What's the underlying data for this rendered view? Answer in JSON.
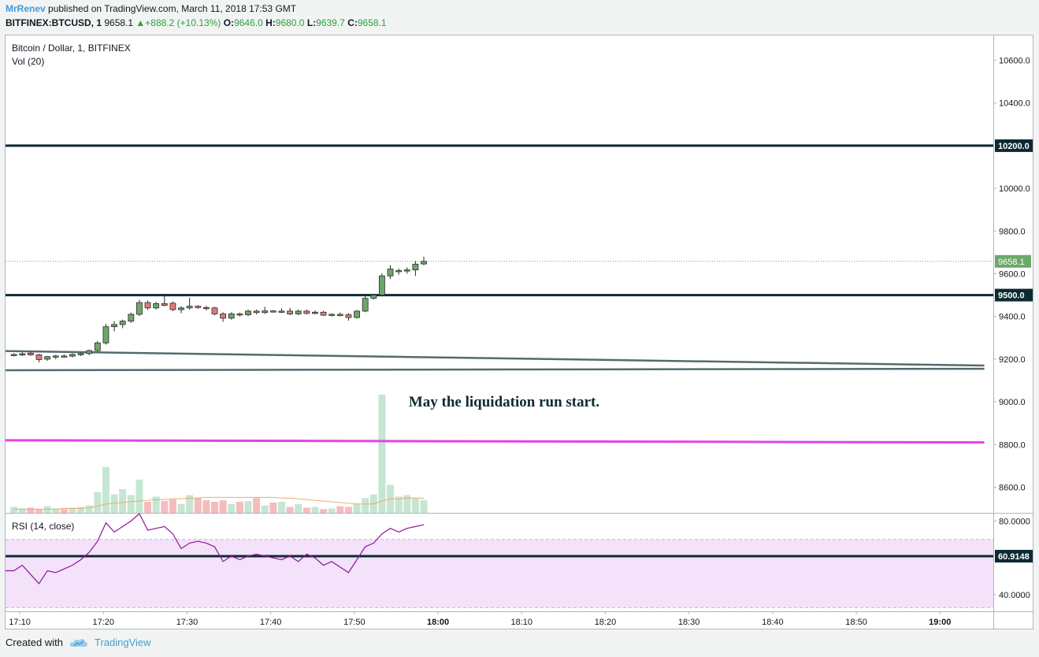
{
  "header": {
    "author": "MrRenev",
    "published_text": "published on TradingView.com, March 11, 2018 17:53 GMT",
    "symbol": "BITFINEX:BTCUSD, 1",
    "last": "9658.1",
    "change": "+888.2 (+10.13%)",
    "o_label": "O:",
    "o_value": "9646.0",
    "h_label": "H:",
    "h_value": "9680.0",
    "l_label": "L:",
    "l_value": "9639.7",
    "c_label": "C:",
    "c_value": "9658.1"
  },
  "footer": {
    "created_with": "Created with",
    "brand": "TradingView"
  },
  "colors": {
    "up": "#6ba583",
    "down": "#d75442",
    "up_fill": "#6ca86a",
    "down_fill": "#e07a78",
    "vol_up": "#c5e6d3",
    "vol_down": "#f5bcbe",
    "level_line": "#0d2a33",
    "trend_line": "#556a70",
    "magenta": "#e641e6",
    "rsi_line": "#8e1599",
    "rsi_band": "#f3e2f9",
    "ma_line": "#f0a868",
    "price_dotted": "#6ba583",
    "last_price_bg": "#6ca86a"
  },
  "chart_data": {
    "type": "candlestick",
    "price_pane": {
      "title": "Bitcoin / Dollar, 1, BITFINEX",
      "volume_label": "Vol (20)",
      "ylim": [
        8480,
        10720
      ],
      "y_ticks": [
        8600,
        8800,
        9000,
        9200,
        9400,
        9600,
        9800,
        10000,
        10400,
        10600
      ],
      "y_tick_labels": [
        "8600.0",
        "8800.0",
        "9000.0",
        "9200.0",
        "9400.0",
        "9600.0",
        "9800.0",
        "10000.0",
        "10400.0",
        "10600.0"
      ],
      "x_start_min": 1028,
      "x_end_min": 1145,
      "candles": [
        {
          "t": 1029,
          "o": 9220,
          "h": 9228,
          "l": 9213,
          "c": 9222
        },
        {
          "t": 1030,
          "o": 9222,
          "h": 9232,
          "l": 9215,
          "c": 9225
        },
        {
          "t": 1031,
          "o": 9228,
          "h": 9236,
          "l": 9216,
          "c": 9220
        },
        {
          "t": 1032,
          "o": 9220,
          "h": 9225,
          "l": 9185,
          "c": 9198
        },
        {
          "t": 1033,
          "o": 9200,
          "h": 9215,
          "l": 9192,
          "c": 9212
        },
        {
          "t": 1034,
          "o": 9212,
          "h": 9220,
          "l": 9200,
          "c": 9215
        },
        {
          "t": 1035,
          "o": 9215,
          "h": 9222,
          "l": 9207,
          "c": 9214
        },
        {
          "t": 1036,
          "o": 9214,
          "h": 9228,
          "l": 9208,
          "c": 9222
        },
        {
          "t": 1037,
          "o": 9222,
          "h": 9230,
          "l": 9215,
          "c": 9226
        },
        {
          "t": 1038,
          "o": 9226,
          "h": 9245,
          "l": 9218,
          "c": 9240
        },
        {
          "t": 1039,
          "o": 9240,
          "h": 9285,
          "l": 9235,
          "c": 9276
        },
        {
          "t": 1040,
          "o": 9276,
          "h": 9365,
          "l": 9268,
          "c": 9352
        },
        {
          "t": 1041,
          "o": 9352,
          "h": 9378,
          "l": 9330,
          "c": 9362
        },
        {
          "t": 1042,
          "o": 9362,
          "h": 9385,
          "l": 9345,
          "c": 9378
        },
        {
          "t": 1043,
          "o": 9378,
          "h": 9418,
          "l": 9370,
          "c": 9410
        },
        {
          "t": 1044,
          "o": 9410,
          "h": 9478,
          "l": 9402,
          "c": 9465
        },
        {
          "t": 1045,
          "o": 9465,
          "h": 9475,
          "l": 9430,
          "c": 9440
        },
        {
          "t": 1046,
          "o": 9440,
          "h": 9468,
          "l": 9432,
          "c": 9460
        },
        {
          "t": 1047,
          "o": 9460,
          "h": 9495,
          "l": 9448,
          "c": 9452
        },
        {
          "t": 1048,
          "o": 9462,
          "h": 9470,
          "l": 9425,
          "c": 9432
        },
        {
          "t": 1049,
          "o": 9432,
          "h": 9448,
          "l": 9415,
          "c": 9440
        },
        {
          "t": 1050,
          "o": 9440,
          "h": 9488,
          "l": 9432,
          "c": 9448
        },
        {
          "t": 1051,
          "o": 9448,
          "h": 9452,
          "l": 9436,
          "c": 9442
        },
        {
          "t": 1052,
          "o": 9442,
          "h": 9450,
          "l": 9428,
          "c": 9440
        },
        {
          "t": 1053,
          "o": 9440,
          "h": 9445,
          "l": 9405,
          "c": 9412
        },
        {
          "t": 1054,
          "o": 9412,
          "h": 9420,
          "l": 9375,
          "c": 9392
        },
        {
          "t": 1055,
          "o": 9392,
          "h": 9420,
          "l": 9385,
          "c": 9412
        },
        {
          "t": 1056,
          "o": 9412,
          "h": 9418,
          "l": 9400,
          "c": 9408
        },
        {
          "t": 1057,
          "o": 9408,
          "h": 9432,
          "l": 9402,
          "c": 9425
        },
        {
          "t": 1058,
          "o": 9425,
          "h": 9432,
          "l": 9410,
          "c": 9418
        },
        {
          "t": 1059,
          "o": 9418,
          "h": 9445,
          "l": 9412,
          "c": 9426
        },
        {
          "t": 1060,
          "o": 9426,
          "h": 9430,
          "l": 9418,
          "c": 9422
        },
        {
          "t": 1061,
          "o": 9422,
          "h": 9438,
          "l": 9416,
          "c": 9425
        },
        {
          "t": 1062,
          "o": 9425,
          "h": 9440,
          "l": 9406,
          "c": 9412
        },
        {
          "t": 1063,
          "o": 9412,
          "h": 9432,
          "l": 9406,
          "c": 9425
        },
        {
          "t": 1064,
          "o": 9425,
          "h": 9432,
          "l": 9410,
          "c": 9414
        },
        {
          "t": 1065,
          "o": 9414,
          "h": 9428,
          "l": 9410,
          "c": 9420
        },
        {
          "t": 1066,
          "o": 9420,
          "h": 9426,
          "l": 9402,
          "c": 9406
        },
        {
          "t": 1067,
          "o": 9406,
          "h": 9415,
          "l": 9400,
          "c": 9410
        },
        {
          "t": 1068,
          "o": 9410,
          "h": 9418,
          "l": 9400,
          "c": 9404
        },
        {
          "t": 1069,
          "o": 9408,
          "h": 9416,
          "l": 9380,
          "c": 9395
        },
        {
          "t": 1070,
          "o": 9395,
          "h": 9430,
          "l": 9390,
          "c": 9425
        },
        {
          "t": 1071,
          "o": 9425,
          "h": 9495,
          "l": 9420,
          "c": 9485
        },
        {
          "t": 1072,
          "o": 9485,
          "h": 9505,
          "l": 9478,
          "c": 9500
        },
        {
          "t": 1073,
          "o": 9500,
          "h": 9602,
          "l": 9494,
          "c": 9590
        },
        {
          "t": 1074,
          "o": 9590,
          "h": 9640,
          "l": 9575,
          "c": 9622
        },
        {
          "t": 1075,
          "o": 9610,
          "h": 9625,
          "l": 9595,
          "c": 9615
        },
        {
          "t": 1076,
          "o": 9615,
          "h": 9630,
          "l": 9600,
          "c": 9618
        },
        {
          "t": 1077,
          "o": 9618,
          "h": 9660,
          "l": 9590,
          "c": 9645
        },
        {
          "t": 1078,
          "o": 9646,
          "h": 9680,
          "l": 9639.7,
          "c": 9658.1
        }
      ],
      "volume": [
        8,
        6,
        7,
        5,
        9,
        6,
        5,
        7,
        8,
        10,
        28,
        62,
        25,
        32,
        24,
        45,
        15,
        22,
        16,
        18,
        12,
        24,
        20,
        17,
        15,
        17,
        12,
        15,
        16,
        20,
        10,
        14,
        15,
        8,
        12,
        7,
        8,
        5,
        6,
        9,
        8,
        12,
        20,
        25,
        160,
        38,
        22,
        24,
        20,
        17
      ],
      "volume_ma": [
        5,
        5,
        5,
        5,
        5,
        5,
        6,
        6,
        6,
        7,
        9,
        12,
        13,
        14,
        15,
        16,
        17,
        18,
        18,
        19,
        19,
        20,
        20,
        21,
        21,
        21,
        21,
        21,
        21,
        21,
        21,
        21,
        20,
        20,
        19,
        18,
        17,
        16,
        15,
        14,
        13,
        12,
        12,
        12,
        16,
        19,
        19,
        20,
        20,
        20
      ],
      "levels": [
        {
          "label": "10200.0",
          "price": 10200,
          "color": "#0d2a33"
        },
        {
          "label": "9500.0",
          "price": 9500,
          "color": "#0d2a33"
        }
      ],
      "last_price_label": "9658.1",
      "last_price": 9658.1,
      "trend_lines": [
        {
          "from": [
            1028,
            9238
          ],
          "to": [
            1145,
            9170
          ]
        },
        {
          "from": [
            1028,
            9148
          ],
          "to": [
            1145,
            9155
          ]
        }
      ],
      "magenta_line": {
        "from": [
          1028,
          8820
        ],
        "to": [
          1145,
          8810
        ]
      },
      "annotation": {
        "text": "May the liquidation run start.",
        "t": 1074.5,
        "price": 9000
      }
    },
    "rsi_pane": {
      "title": "RSI (14, close)",
      "ylim": [
        31,
        84
      ],
      "y_ticks": [
        40,
        80
      ],
      "y_tick_labels": [
        "40.0000",
        "80.0000"
      ],
      "band": [
        33,
        70
      ],
      "level": 60.9148,
      "level_label": "60.9148",
      "values": [
        53,
        56,
        51,
        46,
        53,
        52,
        54,
        56,
        59,
        63,
        69,
        79,
        74,
        77,
        80,
        84,
        75,
        76,
        77,
        73,
        65,
        68,
        69,
        68,
        66,
        58,
        61,
        59,
        61,
        62,
        61,
        60,
        59,
        61,
        58,
        62,
        60,
        56,
        58,
        55,
        52,
        59,
        66,
        68,
        73,
        76,
        74,
        76,
        77,
        78
      ]
    },
    "x_ticks": [
      {
        "label": "17:10",
        "t": 1030,
        "bold": false
      },
      {
        "label": "17:20",
        "t": 1040,
        "bold": false
      },
      {
        "label": "17:30",
        "t": 1050,
        "bold": false
      },
      {
        "label": "17:40",
        "t": 1060,
        "bold": false
      },
      {
        "label": "17:50",
        "t": 1070,
        "bold": false
      },
      {
        "label": "18:00",
        "t": 1080,
        "bold": true
      },
      {
        "label": "18:10",
        "t": 1090,
        "bold": false
      },
      {
        "label": "18:20",
        "t": 1100,
        "bold": false
      },
      {
        "label": "18:30",
        "t": 1110,
        "bold": false
      },
      {
        "label": "18:40",
        "t": 1120,
        "bold": false
      },
      {
        "label": "18:50",
        "t": 1130,
        "bold": false
      },
      {
        "label": "19:00",
        "t": 1140,
        "bold": true
      }
    ]
  }
}
